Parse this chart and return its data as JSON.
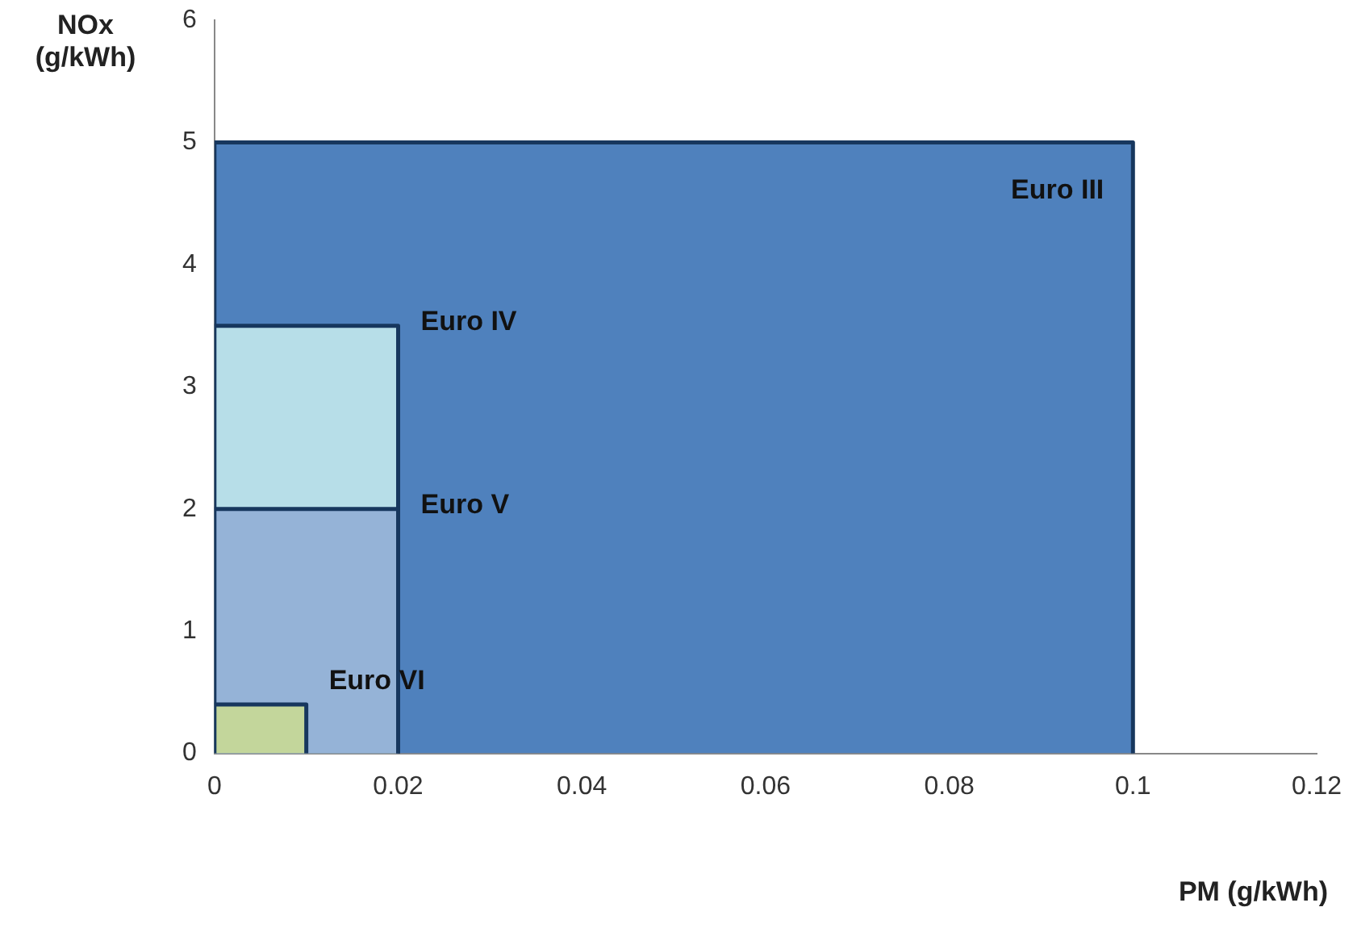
{
  "chart_data": {
    "type": "area",
    "xlabel": "PM (g/kWh)",
    "ylabel": "NOx (g/kWh)",
    "series": [
      {
        "name": "Euro III",
        "color": "#4f81bd",
        "x": [
          0,
          0,
          0.1,
          0.1
        ],
        "values": [
          0,
          5,
          5,
          0
        ]
      },
      {
        "name": "Euro IV",
        "color": "#b7dee8",
        "x": [
          0,
          0,
          0.02,
          0.02
        ],
        "values": [
          0,
          3.5,
          3.5,
          0
        ]
      },
      {
        "name": "Euro V",
        "color": "#95b3d7",
        "x": [
          0,
          0,
          0.02,
          0.02
        ],
        "values": [
          0,
          2,
          2,
          0
        ]
      },
      {
        "name": "Euro VI",
        "color": "#c3d69b",
        "x": [
          0,
          0,
          0.01,
          0.01
        ],
        "values": [
          0,
          0.4,
          0.4,
          0
        ]
      }
    ],
    "xlim": [
      0,
      0.12
    ],
    "xticks": [
      0,
      0.02,
      0.04,
      0.06,
      0.08,
      0.1,
      0.12
    ],
    "ylim": [
      0,
      6
    ],
    "yticks": [
      0,
      1,
      2,
      3,
      4,
      5,
      6
    ],
    "grid": false,
    "legend": false
  }
}
